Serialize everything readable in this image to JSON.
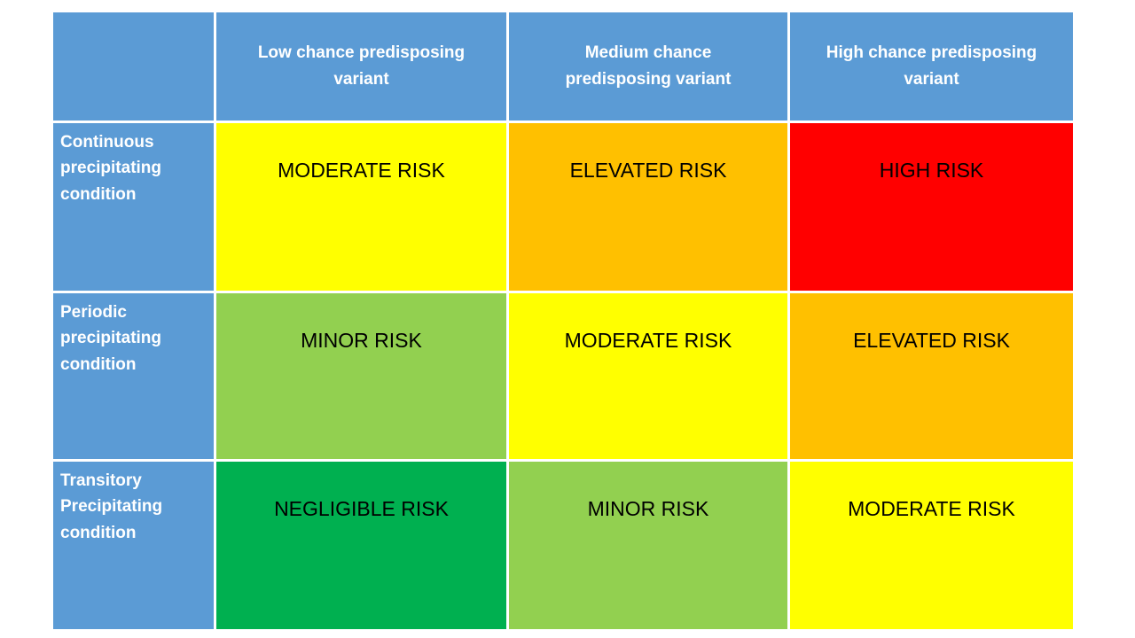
{
  "colors": {
    "page_bg": "#FFFFFF",
    "grid_line": "#FFFFFF",
    "header_bg": "#5B9BD5",
    "header_text": "#FFFFFF",
    "risk_text": "#000000",
    "moderate": "#FFFF00",
    "elevated": "#FFC000",
    "high": "#FF0000",
    "minor": "#92D050",
    "negligible": "#00B050"
  },
  "table": {
    "corner_label": "",
    "column_headers": [
      "Low chance predisposing variant",
      "Medium chance predisposing variant",
      "High chance predisposing variant"
    ],
    "rows": [
      {
        "label": "Continuous precipitating condition",
        "cells": [
          {
            "text": "MODERATE RISK",
            "color": "#FFFF00"
          },
          {
            "text": "ELEVATED RISK",
            "color": "#FFC000"
          },
          {
            "text": "HIGH RISK",
            "color": "#FF0000"
          }
        ]
      },
      {
        "label": "Periodic precipitating condition",
        "cells": [
          {
            "text": "MINOR RISK",
            "color": "#92D050"
          },
          {
            "text": "MODERATE RISK",
            "color": "#FFFF00"
          },
          {
            "text": "ELEVATED RISK",
            "color": "#FFC000"
          }
        ]
      },
      {
        "label": "Transitory Precipitating condition",
        "cells": [
          {
            "text": "NEGLIGIBLE RISK",
            "color": "#00B050"
          },
          {
            "text": "MINOR RISK",
            "color": "#92D050"
          },
          {
            "text": "MODERATE RISK",
            "color": "#FFFF00"
          }
        ]
      }
    ]
  }
}
